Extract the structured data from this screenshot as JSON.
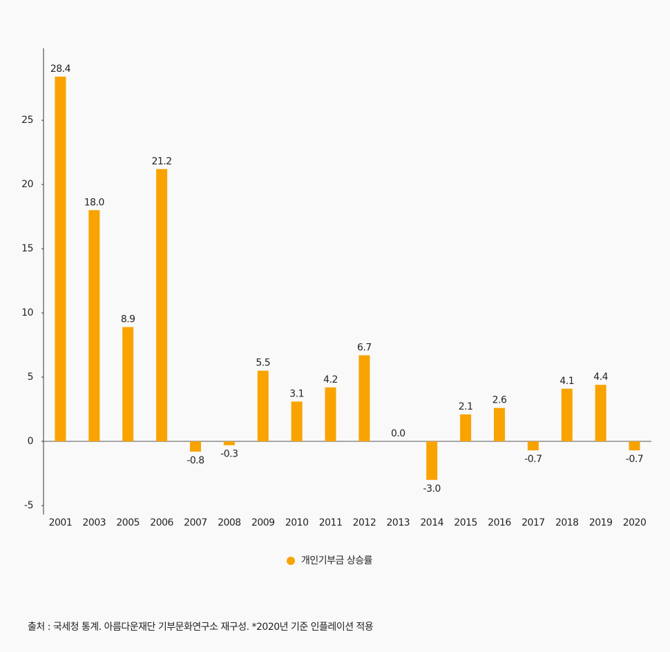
{
  "chart_data": {
    "type": "bar",
    "categories": [
      "2001",
      "2003",
      "2005",
      "2006",
      "2007",
      "2008",
      "2009",
      "2010",
      "2011",
      "2012",
      "2013",
      "2014",
      "2015",
      "2016",
      "2017",
      "2018",
      "2019",
      "2020"
    ],
    "series": [
      {
        "name": "개인기부금 상승률",
        "color": "#f8a300",
        "values": [
          28.4,
          18.0,
          8.9,
          21.2,
          -0.8,
          -0.3,
          5.5,
          3.1,
          4.2,
          6.7,
          0.0,
          -3.0,
          2.1,
          2.6,
          -0.7,
          4.1,
          4.4,
          -0.7
        ],
        "value_labels": [
          "28.4",
          "18.0",
          "8.9",
          "21.2",
          "-0.8",
          "-0.3",
          "5.5",
          "3.1",
          "4.2",
          "6.7",
          "0.0",
          "-3.0",
          "2.1",
          "2.6",
          "-0.7",
          "4.1",
          "4.4",
          "-0.7"
        ]
      }
    ],
    "ylim": [
      -5.7,
      30.6
    ],
    "yticks": [
      -5,
      0,
      5,
      10,
      15,
      20,
      25
    ],
    "source": "출처 : 국세청 통계. 아름다운재단 기부문화연구소 재구성.  *2020년 기준 인플레이션 적용"
  }
}
